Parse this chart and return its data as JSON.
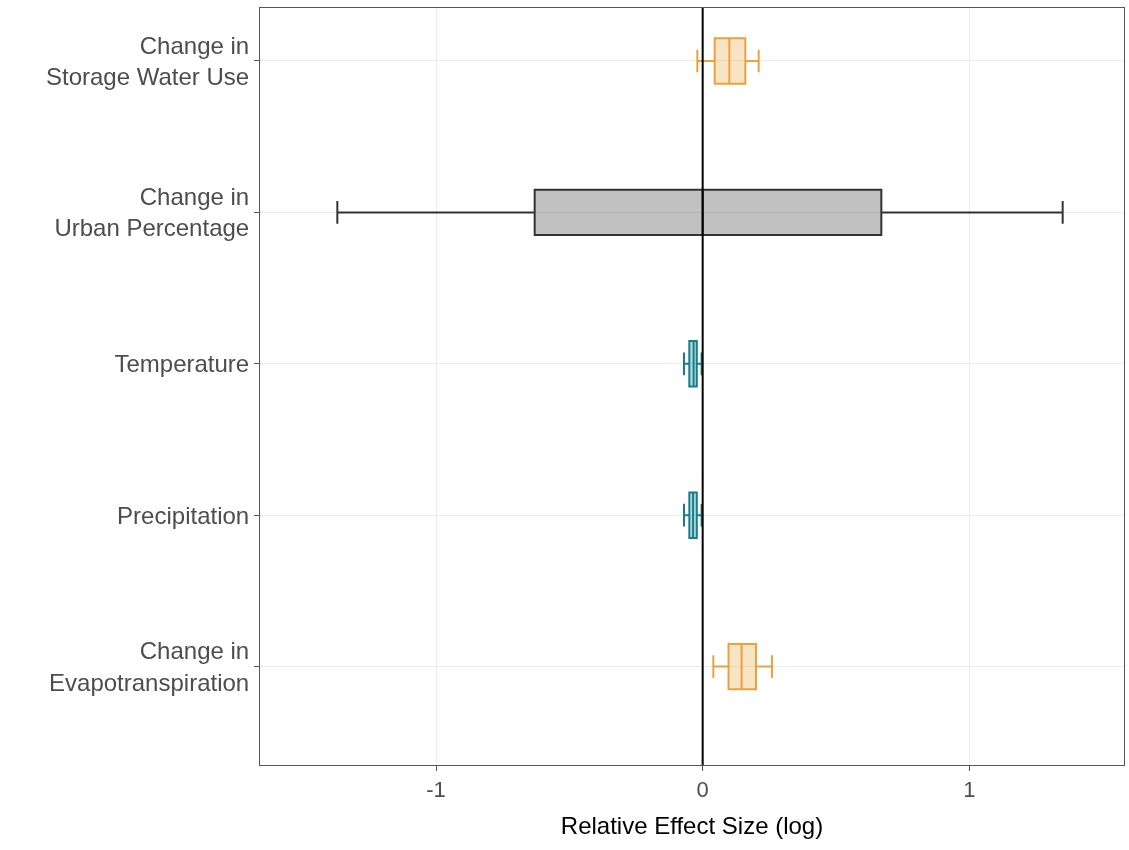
{
  "chart_data": {
    "type": "box",
    "orientation": "horizontal",
    "xlabel": "Relative Effect Size (log)",
    "categories": [
      "Change in\nStorage Water Use",
      "Change in\nUrban Percentage",
      "Temperature",
      "Precipitation",
      "Change in\nEvapotranspiration"
    ],
    "boxes": [
      {
        "low": -0.02,
        "q1": 0.045,
        "median": 0.1,
        "q3": 0.16,
        "high": 0.21
      },
      {
        "low": -1.37,
        "q1": -0.63,
        "median": 0.0,
        "q3": 0.67,
        "high": 1.35
      },
      {
        "low": -0.07,
        "q1": -0.05,
        "median": -0.034,
        "q3": -0.022,
        "high": -0.004
      },
      {
        "low": -0.07,
        "q1": -0.05,
        "median": -0.036,
        "q3": -0.022,
        "high": -0.004
      },
      {
        "low": 0.04,
        "q1": 0.097,
        "median": 0.146,
        "q3": 0.2,
        "high": 0.26
      }
    ],
    "colors": [
      "#e8a33d",
      "#333333",
      "#137f8c",
      "#137f8c",
      "#e8a33d"
    ],
    "xlim": [
      -1.66,
      1.58
    ],
    "xticks": [
      -1,
      0,
      1
    ],
    "ref_lines": [
      {
        "axis": "x",
        "value": 0,
        "color": "#000000"
      }
    ],
    "grid": true
  }
}
